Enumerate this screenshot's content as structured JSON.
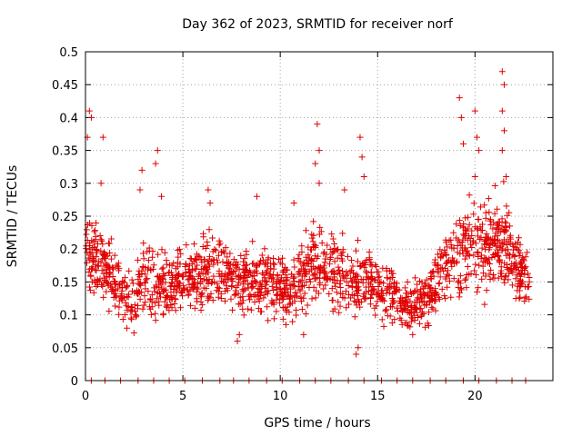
{
  "chart_data": {
    "type": "scatter",
    "title": "Day 362 of 2023, SRMTID for receiver norf",
    "xlabel": "GPS time / hours",
    "ylabel": "SRMTID / TECUs",
    "xlim": [
      0,
      24
    ],
    "ylim": [
      0,
      0.5
    ],
    "xticks": [
      0,
      5,
      10,
      15,
      20
    ],
    "xtick_labels": [
      "0",
      "5",
      "10",
      "15",
      "20"
    ],
    "yticks": [
      0,
      0.05,
      0.1,
      0.15,
      0.2,
      0.25,
      0.3,
      0.35,
      0.4,
      0.45,
      0.5
    ],
    "ytick_labels": [
      "0",
      "0.05",
      "0.1",
      "0.15",
      "0.2",
      "0.25",
      "0.3",
      "0.35",
      "0.4",
      "0.45",
      "0.5"
    ],
    "grid": true,
    "marker": "+",
    "color": "#e00000",
    "time_range_hours": [
      0,
      22.8
    ],
    "envelope": {
      "x": [
        0.0,
        0.5,
        1.0,
        1.5,
        2.0,
        2.5,
        3.0,
        3.5,
        4.0,
        4.5,
        5.0,
        5.5,
        6.0,
        6.5,
        7.0,
        7.5,
        8.0,
        8.5,
        9.0,
        9.5,
        10.0,
        10.5,
        11.0,
        11.5,
        12.0,
        12.5,
        13.0,
        13.5,
        14.0,
        14.5,
        15.0,
        15.5,
        16.0,
        16.5,
        17.0,
        17.5,
        18.0,
        18.5,
        19.0,
        19.5,
        20.0,
        20.5,
        21.0,
        21.5,
        22.0,
        22.5,
        22.8
      ],
      "center": [
        0.2,
        0.19,
        0.17,
        0.15,
        0.13,
        0.12,
        0.16,
        0.15,
        0.14,
        0.15,
        0.15,
        0.16,
        0.16,
        0.17,
        0.17,
        0.16,
        0.15,
        0.16,
        0.16,
        0.15,
        0.14,
        0.13,
        0.15,
        0.17,
        0.18,
        0.17,
        0.16,
        0.16,
        0.15,
        0.15,
        0.14,
        0.13,
        0.12,
        0.11,
        0.11,
        0.13,
        0.15,
        0.17,
        0.19,
        0.2,
        0.21,
        0.2,
        0.22,
        0.21,
        0.18,
        0.16,
        0.14
      ],
      "spread": [
        0.06,
        0.06,
        0.05,
        0.05,
        0.05,
        0.05,
        0.07,
        0.06,
        0.05,
        0.05,
        0.05,
        0.05,
        0.06,
        0.06,
        0.06,
        0.05,
        0.05,
        0.05,
        0.06,
        0.05,
        0.05,
        0.05,
        0.06,
        0.07,
        0.07,
        0.06,
        0.06,
        0.06,
        0.06,
        0.05,
        0.05,
        0.05,
        0.04,
        0.04,
        0.04,
        0.05,
        0.05,
        0.06,
        0.07,
        0.07,
        0.08,
        0.08,
        0.08,
        0.08,
        0.06,
        0.05,
        0.04
      ]
    },
    "peaks": [
      {
        "x": 0.2,
        "y": 0.41
      },
      {
        "x": 0.3,
        "y": 0.4
      },
      {
        "x": 0.1,
        "y": 0.37
      },
      {
        "x": 0.9,
        "y": 0.37
      },
      {
        "x": 0.8,
        "y": 0.3
      },
      {
        "x": 2.9,
        "y": 0.32
      },
      {
        "x": 2.8,
        "y": 0.29
      },
      {
        "x": 3.7,
        "y": 0.35
      },
      {
        "x": 3.6,
        "y": 0.33
      },
      {
        "x": 3.9,
        "y": 0.28
      },
      {
        "x": 6.3,
        "y": 0.29
      },
      {
        "x": 6.4,
        "y": 0.27
      },
      {
        "x": 8.8,
        "y": 0.28
      },
      {
        "x": 10.7,
        "y": 0.27
      },
      {
        "x": 11.9,
        "y": 0.39
      },
      {
        "x": 12.0,
        "y": 0.35
      },
      {
        "x": 11.8,
        "y": 0.33
      },
      {
        "x": 12.0,
        "y": 0.3
      },
      {
        "x": 13.3,
        "y": 0.29
      },
      {
        "x": 14.1,
        "y": 0.37
      },
      {
        "x": 14.2,
        "y": 0.34
      },
      {
        "x": 14.3,
        "y": 0.31
      },
      {
        "x": 19.2,
        "y": 0.43
      },
      {
        "x": 19.3,
        "y": 0.4
      },
      {
        "x": 19.4,
        "y": 0.36
      },
      {
        "x": 20.0,
        "y": 0.41
      },
      {
        "x": 20.1,
        "y": 0.37
      },
      {
        "x": 20.2,
        "y": 0.35
      },
      {
        "x": 20.0,
        "y": 0.31
      },
      {
        "x": 21.4,
        "y": 0.47
      },
      {
        "x": 21.5,
        "y": 0.45
      },
      {
        "x": 21.4,
        "y": 0.41
      },
      {
        "x": 21.5,
        "y": 0.38
      },
      {
        "x": 21.4,
        "y": 0.35
      },
      {
        "x": 21.6,
        "y": 0.31
      }
    ],
    "troughs": [
      {
        "x": 7.8,
        "y": 0.06
      },
      {
        "x": 7.9,
        "y": 0.07
      },
      {
        "x": 13.9,
        "y": 0.04
      },
      {
        "x": 14.0,
        "y": 0.05
      },
      {
        "x": 11.2,
        "y": 0.07
      },
      {
        "x": 16.8,
        "y": 0.07
      }
    ],
    "zero_markers_x": [
      0.3,
      1.0,
      1.8,
      2.7,
      3.5,
      4.3,
      5.1,
      6.0,
      6.9,
      7.6,
      8.4,
      9.3,
      10.1,
      11.0,
      11.8,
      12.6,
      13.5,
      14.3,
      15.2,
      16.0,
      16.8,
      17.7,
      18.5,
      19.4,
      20.2,
      21.1,
      21.9,
      22.6
    ]
  }
}
